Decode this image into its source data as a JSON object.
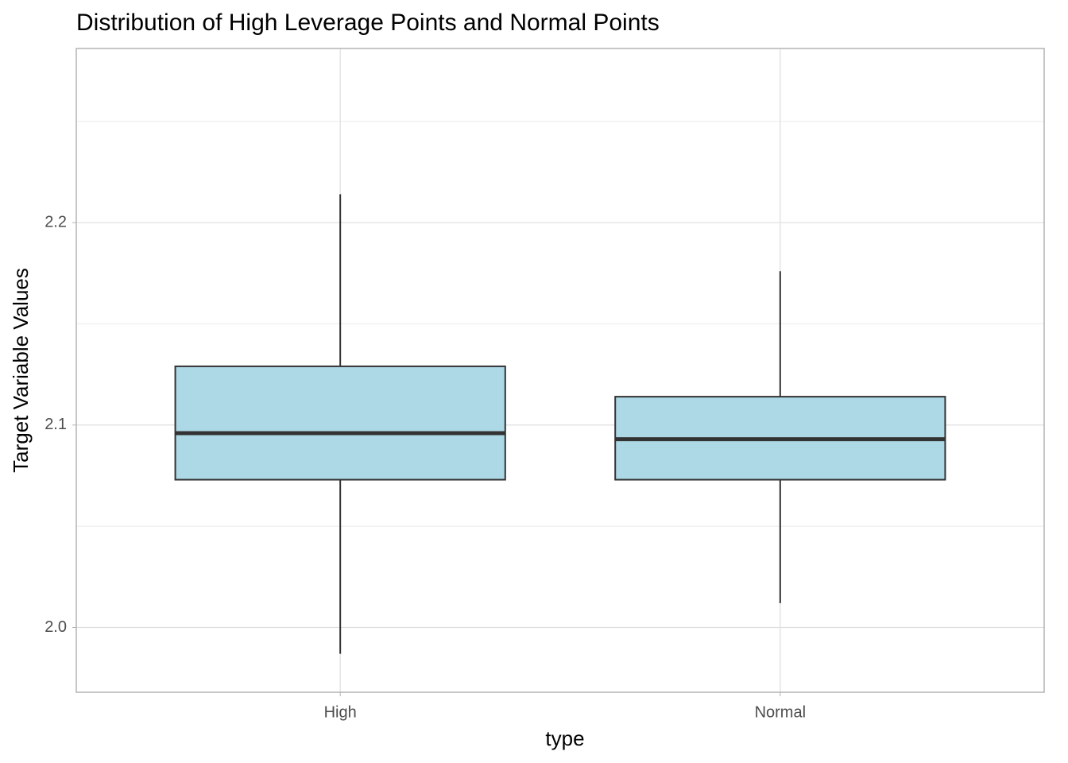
{
  "chart_data": {
    "type": "boxplot",
    "title": "Distribution of High Leverage Points and Normal  Points",
    "x_label": "type",
    "y_label": "Target Variable Values",
    "categories": [
      "High",
      "Normal"
    ],
    "boxes": [
      {
        "min": 1.987,
        "q1": 2.073,
        "median": 2.096,
        "q3": 2.129,
        "max": 2.214
      },
      {
        "min": 2.012,
        "q1": 2.073,
        "median": 2.093,
        "q3": 2.114,
        "max": 2.176
      }
    ],
    "color": "#add8e6",
    "ylim": [
      1.968,
      2.286
    ],
    "yticks": [
      {
        "value": 2,
        "label": "2.0"
      },
      2.1,
      2.2
    ],
    "y_minor_grid": [
      2.05,
      2.15,
      2.25
    ],
    "grid": true
  }
}
